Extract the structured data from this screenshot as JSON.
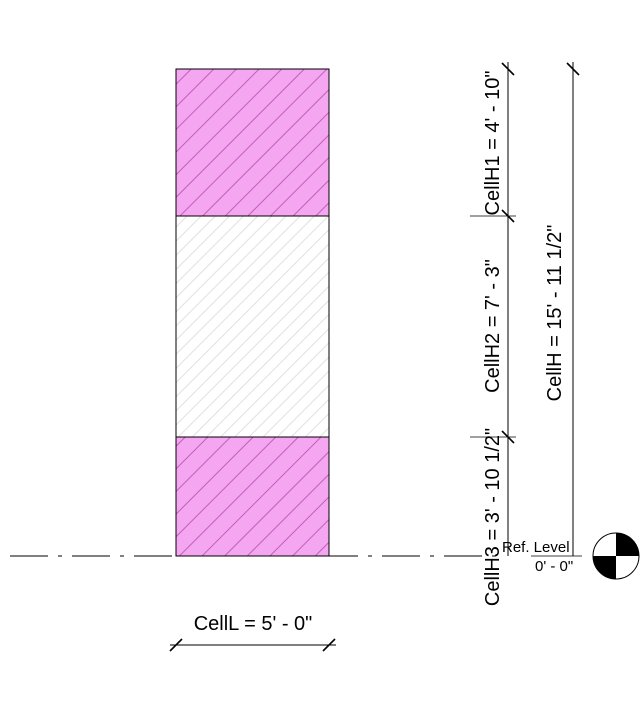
{
  "colors": {
    "cell_fill_magenta": "#f5a6f0",
    "cell_fill_white": "#ffffff",
    "hatch_dark": "#b44cb0",
    "hatch_light": "#d9d9d9",
    "line": "#000000"
  },
  "cells": [
    {
      "name": "top-cell",
      "pattern": "magenta-hatch"
    },
    {
      "name": "middle-cell",
      "pattern": "light-hatch"
    },
    {
      "name": "bottom-cell",
      "pattern": "magenta-hatch"
    }
  ],
  "dimensions": {
    "cell_h1": "CellH1 = 4' - 10\"",
    "cell_h2": "CellH2 = 7' - 3\"",
    "cell_h3": "CellH3 = 3' - 10 1/2\"",
    "cell_h": "CellH = 15' - 11 1/2\"",
    "cell_l": "CellL = 5' - 0\""
  },
  "level": {
    "name": "Ref. Level",
    "elevation": "0' - 0\"",
    "icon": "level-head-icon"
  }
}
